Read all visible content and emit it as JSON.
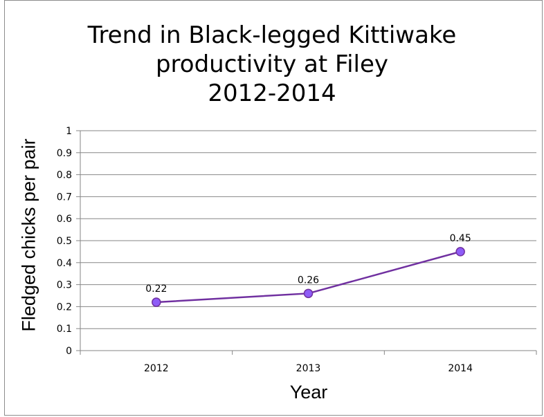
{
  "chart_data": {
    "type": "line",
    "title": [
      "Trend in Black-legged Kittiwake",
      "productivity at Filey",
      "2012-2014"
    ],
    "xlabel": "Year",
    "ylabel": "Fledged  chicks per pair",
    "categories": [
      "2012",
      "2013",
      "2014"
    ],
    "series": [
      {
        "values": [
          0.22,
          0.26,
          0.45
        ],
        "labels": [
          "0.22",
          "0.26",
          "0.45"
        ]
      }
    ],
    "ylim": [
      0,
      1
    ],
    "yticks": [
      "0",
      "0.1",
      "0.2",
      "0.3",
      "0.4",
      "0.5",
      "0.6",
      "0.7",
      "0.8",
      "0.9",
      "1"
    ],
    "grid": true,
    "legend": "none",
    "colors": {
      "line": "#7030a0",
      "marker_fill": "#8e5cf7",
      "grid": "#868686",
      "axis": "#868686"
    }
  }
}
